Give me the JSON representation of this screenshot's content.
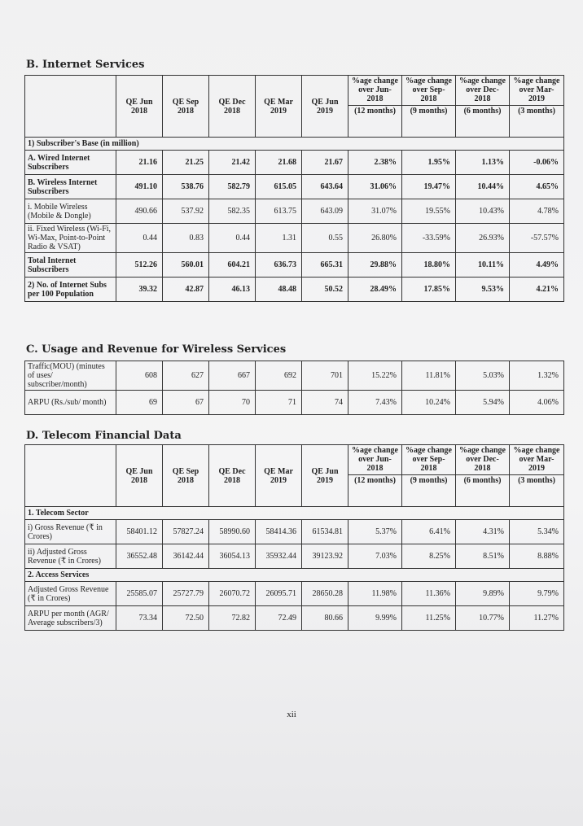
{
  "sections": [
    {
      "title": "B. Internet Services",
      "header": [
        "QE Jun 2018",
        "QE Sep 2018",
        "QE Dec 2018",
        "QE Mar 2019",
        "QE Jun 2019",
        {
          "text": "%age change over Jun-2018",
          "period": "(12 months)"
        },
        {
          "text": "%age change over Sep-2018",
          "period": "(9 months)"
        },
        {
          "text": "%age change over Dec-2018",
          "period": "(6 months)"
        },
        {
          "text": "%age change over Mar-2019",
          "period": "(3 months)"
        }
      ],
      "rows": [
        {
          "group": "1) Subscriber's Base (in million)"
        },
        {
          "label": "A. Wired Internet Subscribers",
          "bold": true,
          "cells": [
            "21.16",
            "21.25",
            "21.42",
            "21.68",
            "21.67",
            "2.38%",
            "1.95%",
            "1.13%",
            "-0.06%"
          ]
        },
        {
          "label": "B. Wireless Internet Subscribers",
          "bold": true,
          "cells": [
            "491.10",
            "538.76",
            "582.79",
            "615.05",
            "643.64",
            "31.06%",
            "19.47%",
            "10.44%",
            "4.65%"
          ]
        },
        {
          "label": "i. Mobile Wireless (Mobile & Dongle)",
          "cells": [
            "490.66",
            "537.92",
            "582.35",
            "613.75",
            "643.09",
            "31.07%",
            "19.55%",
            "10.43%",
            "4.78%"
          ]
        },
        {
          "label": "ii. Fixed Wireless (Wi-Fi, Wi-Max, Point-to-Point Radio & VSAT)",
          "cells": [
            "0.44",
            "0.83",
            "0.44",
            "1.31",
            "0.55",
            "26.80%",
            "-33.59%",
            "26.93%",
            "-57.57%"
          ]
        },
        {
          "label": "Total Internet Subscribers",
          "bold": true,
          "cells": [
            "512.26",
            "560.01",
            "604.21",
            "636.73",
            "665.31",
            "29.88%",
            "18.80%",
            "10.11%",
            "4.49%"
          ]
        },
        {
          "label": "2) No. of Internet Subs per 100 Population",
          "bold": true,
          "cells": [
            "39.32",
            "42.87",
            "46.13",
            "48.48",
            "50.52",
            "28.49%",
            "17.85%",
            "9.53%",
            "4.21%"
          ]
        }
      ]
    },
    {
      "title": "C. Usage and Revenue for Wireless Services",
      "rows": [
        {
          "label": "Traffic(MOU) (minutes of uses/ subscriber/month)",
          "cells": [
            "608",
            "627",
            "667",
            "692",
            "701",
            "15.22%",
            "11.81%",
            "5.03%",
            "1.32%"
          ]
        },
        {
          "label": "ARPU (Rs./sub/ month)",
          "cells": [
            "69",
            "67",
            "70",
            "71",
            "74",
            "7.43%",
            "10.24%",
            "5.94%",
            "4.06%"
          ]
        }
      ]
    },
    {
      "title": "D. Telecom Financial Data",
      "header": [
        "QE Jun 2018",
        "QE Sep 2018",
        "QE Dec 2018",
        "QE Mar 2019",
        "QE Jun 2019",
        {
          "text": "%age change over Jun-2018",
          "period": "(12 months)"
        },
        {
          "text": "%age change over Sep-2018",
          "period": "(9 months)"
        },
        {
          "text": "%age change over Dec-2018",
          "period": "(6 months)"
        },
        {
          "text": "%age change over Mar-2019",
          "period": "(3 months)"
        }
      ],
      "rows": [
        {
          "group": "1. Telecom Sector"
        },
        {
          "label": "i) Gross Revenue (₹ in Crores)",
          "cells": [
            "58401.12",
            "57827.24",
            "58990.60",
            "58414.36",
            "61534.81",
            "5.37%",
            "6.41%",
            "4.31%",
            "5.34%"
          ]
        },
        {
          "label": "ii) Adjusted Gross Revenue (₹ in Crores)",
          "cells": [
            "36552.48",
            "36142.44",
            "36054.13",
            "35932.44",
            "39123.92",
            "7.03%",
            "8.25%",
            "8.51%",
            "8.88%"
          ]
        },
        {
          "group": "2. Access Services"
        },
        {
          "label": "Adjusted Gross Revenue (₹ in Crores)",
          "cells": [
            "25585.07",
            "25727.79",
            "26070.72",
            "26095.71",
            "28650.28",
            "11.98%",
            "11.36%",
            "9.89%",
            "9.79%"
          ]
        },
        {
          "label": "ARPU per month (AGR/ Average subscribers/3)",
          "cells": [
            "73.34",
            "72.50",
            "72.82",
            "72.49",
            "80.66",
            "9.99%",
            "11.25%",
            "10.77%",
            "11.27%"
          ]
        }
      ]
    }
  ],
  "page_number": "xii"
}
